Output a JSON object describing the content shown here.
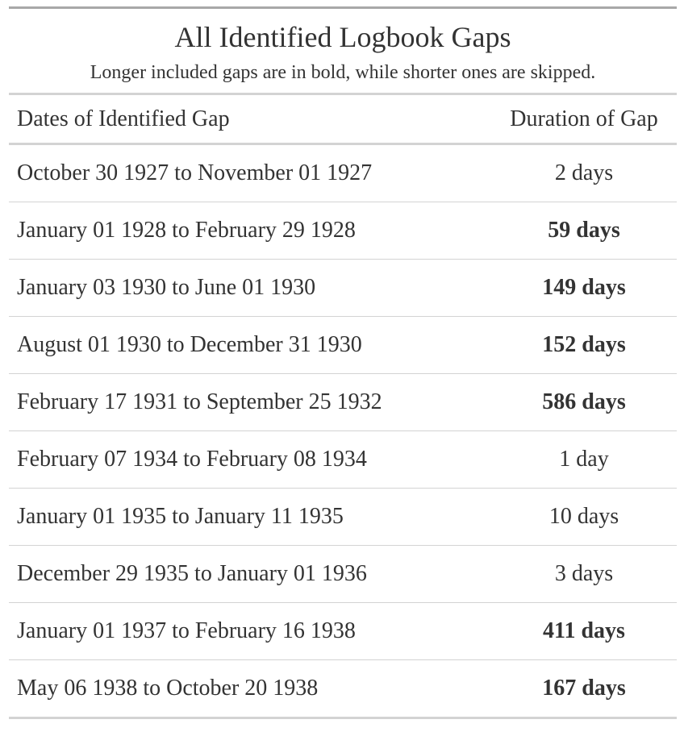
{
  "title": "All Identified Logbook Gaps",
  "subtitle": "Longer included gaps are in bold, while shorter ones are skipped.",
  "columns": {
    "dates": "Dates of Identified Gap",
    "duration": "Duration of Gap"
  },
  "rows": [
    {
      "dates": "October 30 1927 to November 01 1927",
      "duration": "2 days",
      "bold": false
    },
    {
      "dates": "January 01 1928 to February 29 1928",
      "duration": "59 days",
      "bold": true
    },
    {
      "dates": "January 03 1930 to June 01 1930",
      "duration": "149 days",
      "bold": true
    },
    {
      "dates": "August 01 1930 to December 31 1930",
      "duration": "152 days",
      "bold": true
    },
    {
      "dates": "February 17 1931 to September 25 1932",
      "duration": "586 days",
      "bold": true
    },
    {
      "dates": "February 07 1934 to February 08 1934",
      "duration": "1 day",
      "bold": false
    },
    {
      "dates": "January 01 1935 to January 11 1935",
      "duration": "10 days",
      "bold": false
    },
    {
      "dates": "December 29 1935 to January 01 1936",
      "duration": "3 days",
      "bold": false
    },
    {
      "dates": "January 01 1937 to February 16 1938",
      "duration": "411 days",
      "bold": true
    },
    {
      "dates": "May 06 1938 to October 20 1938",
      "duration": "167 days",
      "bold": true
    }
  ]
}
